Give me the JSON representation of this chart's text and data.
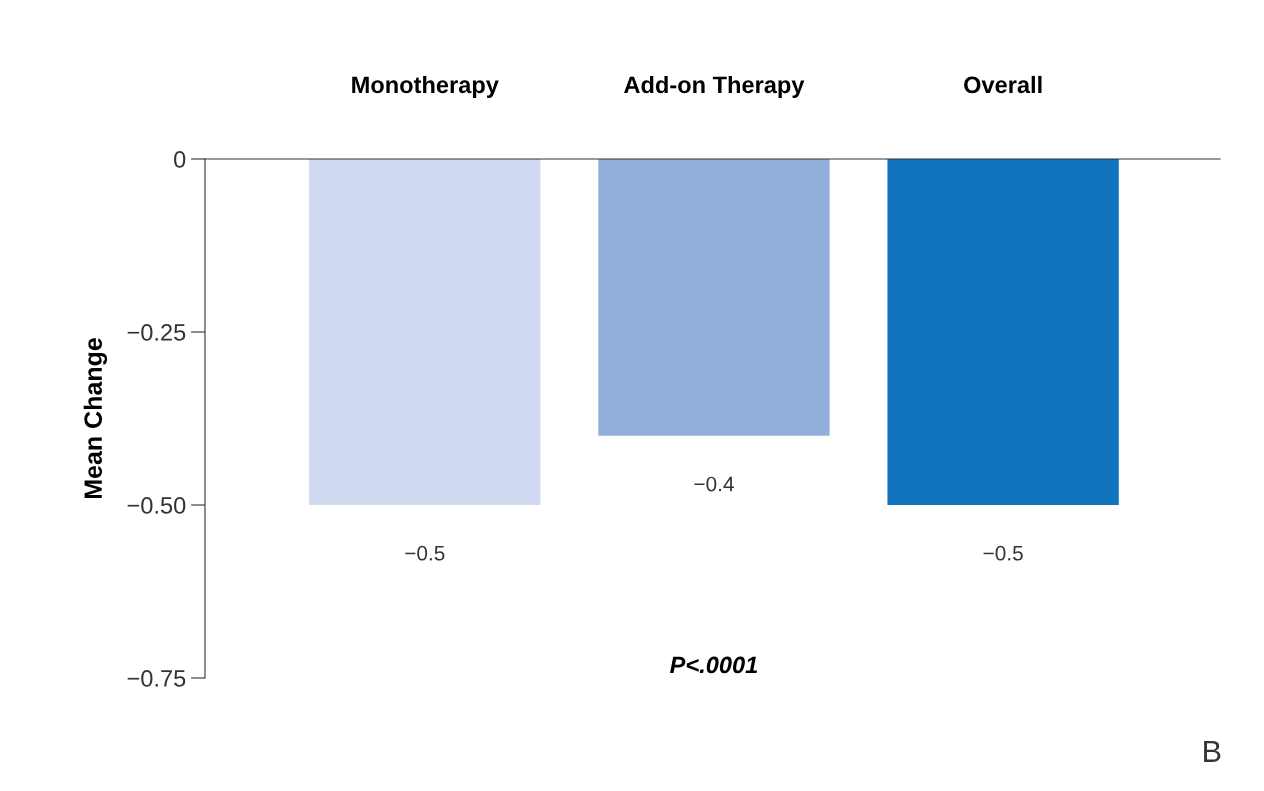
{
  "chart_data": {
    "type": "bar",
    "ylabel": "Mean Change",
    "categories": [
      "Monotherapy",
      "Add-on Therapy",
      "Overall"
    ],
    "values": [
      -0.5,
      -0.4,
      -0.5
    ],
    "colors": [
      "#cfd9f0",
      "#92aedb",
      "#1175bd"
    ],
    "value_labels": [
      "−0.5",
      "−0.4",
      "−0.5"
    ],
    "ylim": [
      -0.75,
      0
    ],
    "yticks": [
      {
        "value": 0,
        "label": "0"
      },
      {
        "value": -0.25,
        "label": "−0.25"
      },
      {
        "value": -0.5,
        "label": "−0.50"
      },
      {
        "value": -0.75,
        "label": "−0.75"
      }
    ],
    "annotations": [
      "P<.0001",
      "B"
    ],
    "grid": false,
    "legend": false
  }
}
